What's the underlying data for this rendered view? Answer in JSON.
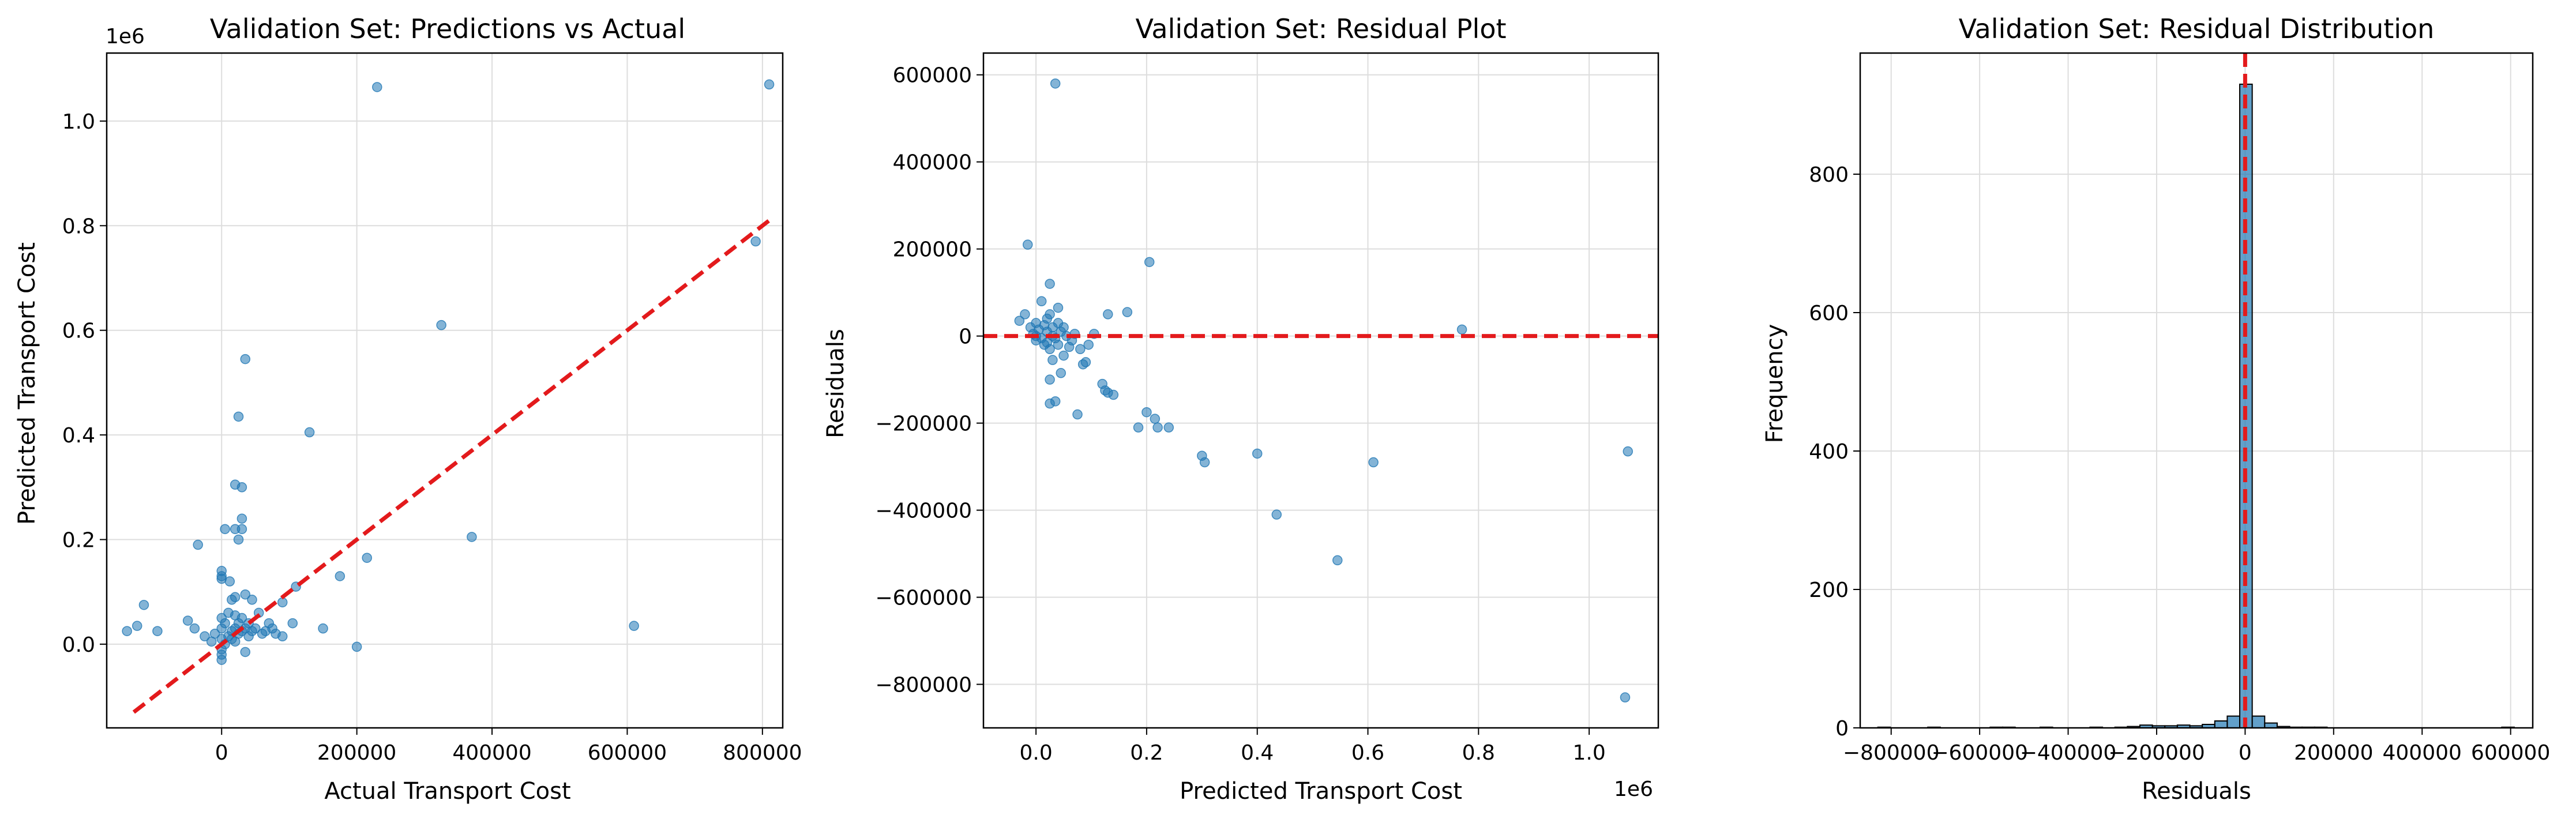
{
  "colors": {
    "points": "#1f77b4",
    "reference_line": "#e31a1c",
    "grid": "#dddddd",
    "bars": "#1f77b4",
    "bar_edge": "#000000"
  },
  "chart_data": [
    {
      "type": "scatter",
      "title": "Validation Set: Predictions vs Actual",
      "xlabel": "Actual Transport Cost",
      "ylabel": "Predicted Transport Cost",
      "y_offset_label": "1e6",
      "xlim": [
        -170000,
        830000
      ],
      "ylim": [
        -160000,
        1130000
      ],
      "xticks": [
        0,
        200000,
        400000,
        600000,
        800000
      ],
      "xtick_labels": [
        "0",
        "200000",
        "400000",
        "600000",
        "800000"
      ],
      "yticks": [
        0,
        200000,
        400000,
        600000,
        800000,
        1000000
      ],
      "ytick_labels": [
        "0.0",
        "0.2",
        "0.4",
        "0.6",
        "0.8",
        "1.0"
      ],
      "grid": true,
      "reference_line": {
        "style": "dashed",
        "x": [
          -130000,
          810000
        ],
        "y": [
          -130000,
          810000
        ]
      },
      "points": [
        [
          -140000,
          25000
        ],
        [
          -125000,
          35000
        ],
        [
          -115000,
          75000
        ],
        [
          -95000,
          25000
        ],
        [
          -50000,
          45000
        ],
        [
          -40000,
          30000
        ],
        [
          -35000,
          190000
        ],
        [
          -25000,
          15000
        ],
        [
          -15000,
          5000
        ],
        [
          -10000,
          20000
        ],
        [
          0,
          140000
        ],
        [
          0,
          130000
        ],
        [
          0,
          125000
        ],
        [
          0,
          50000
        ],
        [
          0,
          30000
        ],
        [
          0,
          10000
        ],
        [
          0,
          -10000
        ],
        [
          0,
          -20000
        ],
        [
          0,
          -30000
        ],
        [
          5000,
          220000
        ],
        [
          5000,
          40000
        ],
        [
          5000,
          0
        ],
        [
          10000,
          15000
        ],
        [
          10000,
          60000
        ],
        [
          12000,
          120000
        ],
        [
          15000,
          85000
        ],
        [
          15000,
          25000
        ],
        [
          15000,
          10000
        ],
        [
          20000,
          305000
        ],
        [
          20000,
          220000
        ],
        [
          20000,
          90000
        ],
        [
          20000,
          55000
        ],
        [
          20000,
          30000
        ],
        [
          20000,
          5000
        ],
        [
          25000,
          435000
        ],
        [
          25000,
          200000
        ],
        [
          25000,
          40000
        ],
        [
          25000,
          20000
        ],
        [
          30000,
          300000
        ],
        [
          30000,
          240000
        ],
        [
          30000,
          220000
        ],
        [
          30000,
          50000
        ],
        [
          30000,
          25000
        ],
        [
          35000,
          545000
        ],
        [
          35000,
          95000
        ],
        [
          35000,
          30000
        ],
        [
          35000,
          -15000
        ],
        [
          40000,
          40000
        ],
        [
          40000,
          15000
        ],
        [
          45000,
          85000
        ],
        [
          45000,
          25000
        ],
        [
          50000,
          30000
        ],
        [
          55000,
          60000
        ],
        [
          60000,
          20000
        ],
        [
          65000,
          25000
        ],
        [
          70000,
          40000
        ],
        [
          75000,
          30000
        ],
        [
          80000,
          20000
        ],
        [
          90000,
          15000
        ],
        [
          90000,
          80000
        ],
        [
          105000,
          40000
        ],
        [
          110000,
          110000
        ],
        [
          130000,
          405000
        ],
        [
          150000,
          30000
        ],
        [
          175000,
          130000
        ],
        [
          200000,
          -5000
        ],
        [
          215000,
          165000
        ],
        [
          230000,
          1065000
        ],
        [
          325000,
          610000
        ],
        [
          370000,
          205000
        ],
        [
          610000,
          35000
        ],
        [
          790000,
          770000
        ],
        [
          810000,
          1070000
        ]
      ]
    },
    {
      "type": "scatter",
      "title": "Validation Set: Residual Plot",
      "xlabel": "Predicted Transport Cost",
      "ylabel": "Residuals",
      "x_offset_label": "1e6",
      "xlim": [
        -95000,
        1125000
      ],
      "ylim": [
        -900000,
        650000
      ],
      "xticks": [
        0,
        200000,
        400000,
        600000,
        800000,
        1000000
      ],
      "xtick_labels": [
        "0.0",
        "0.2",
        "0.4",
        "0.6",
        "0.8",
        "1.0"
      ],
      "yticks": [
        -800000,
        -600000,
        -400000,
        -200000,
        0,
        200000,
        400000,
        600000
      ],
      "ytick_labels": [
        "−800000",
        "−600000",
        "−400000",
        "−200000",
        "0",
        "200000",
        "400000",
        "600000"
      ],
      "grid": true,
      "reference_line": {
        "style": "dashed",
        "y": 0
      },
      "points": [
        [
          -30000,
          35000
        ],
        [
          -20000,
          50000
        ],
        [
          -15000,
          210000
        ],
        [
          -10000,
          20000
        ],
        [
          -5000,
          5000
        ],
        [
          0,
          30000
        ],
        [
          0,
          0
        ],
        [
          0,
          -10000
        ],
        [
          5000,
          15000
        ],
        [
          10000,
          80000
        ],
        [
          10000,
          -5000
        ],
        [
          15000,
          25000
        ],
        [
          15000,
          -20000
        ],
        [
          20000,
          40000
        ],
        [
          20000,
          10000
        ],
        [
          20000,
          -15000
        ],
        [
          25000,
          120000
        ],
        [
          25000,
          50000
        ],
        [
          25000,
          -30000
        ],
        [
          25000,
          -100000
        ],
        [
          25000,
          -155000
        ],
        [
          30000,
          20000
        ],
        [
          30000,
          0
        ],
        [
          30000,
          -55000
        ],
        [
          35000,
          580000
        ],
        [
          35000,
          -5000
        ],
        [
          35000,
          -150000
        ],
        [
          40000,
          65000
        ],
        [
          40000,
          30000
        ],
        [
          40000,
          -20000
        ],
        [
          45000,
          10000
        ],
        [
          45000,
          -85000
        ],
        [
          50000,
          20000
        ],
        [
          50000,
          -45000
        ],
        [
          55000,
          0
        ],
        [
          60000,
          -25000
        ],
        [
          65000,
          -10000
        ],
        [
          70000,
          5000
        ],
        [
          75000,
          -180000
        ],
        [
          80000,
          -30000
        ],
        [
          85000,
          -65000
        ],
        [
          90000,
          -60000
        ],
        [
          95000,
          -20000
        ],
        [
          105000,
          5000
        ],
        [
          120000,
          -110000
        ],
        [
          125000,
          -125000
        ],
        [
          130000,
          50000
        ],
        [
          130000,
          -130000
        ],
        [
          140000,
          -135000
        ],
        [
          165000,
          55000
        ],
        [
          185000,
          -210000
        ],
        [
          200000,
          -175000
        ],
        [
          205000,
          170000
        ],
        [
          215000,
          -190000
        ],
        [
          220000,
          -210000
        ],
        [
          240000,
          -210000
        ],
        [
          300000,
          -275000
        ],
        [
          305000,
          -290000
        ],
        [
          400000,
          -270000
        ],
        [
          435000,
          -410000
        ],
        [
          545000,
          -515000
        ],
        [
          610000,
          -290000
        ],
        [
          770000,
          15000
        ],
        [
          1065000,
          -830000
        ],
        [
          1070000,
          -265000
        ]
      ]
    },
    {
      "type": "histogram",
      "title": "Validation Set: Residual Distribution",
      "xlabel": "Residuals",
      "ylabel": "Frequency",
      "xlim": [
        -870000,
        650000
      ],
      "ylim": [
        0,
        975
      ],
      "xticks": [
        -800000,
        -600000,
        -400000,
        -200000,
        0,
        200000,
        400000,
        600000
      ],
      "xtick_labels": [
        "−800000",
        "−600000",
        "−400000",
        "−200000",
        "0",
        "200000",
        "400000",
        "600000"
      ],
      "yticks": [
        0,
        200,
        400,
        600,
        800
      ],
      "ytick_labels": [
        "0",
        "200",
        "400",
        "600",
        "800"
      ],
      "grid": true,
      "reference_line": {
        "style": "dashed",
        "x": 0
      },
      "bin_start": -830000,
      "bin_width": 28200,
      "counts": [
        1,
        0,
        0,
        0,
        1,
        0,
        0,
        0,
        0,
        1,
        1,
        0,
        0,
        1,
        0,
        0,
        0,
        1,
        0,
        1,
        2,
        4,
        3,
        3,
        4,
        3,
        5,
        10,
        17,
        930,
        17,
        7,
        2,
        1,
        1,
        1,
        0,
        0,
        0,
        0,
        0,
        0,
        0,
        0,
        0,
        0,
        0,
        0,
        0,
        0,
        1
      ]
    }
  ]
}
